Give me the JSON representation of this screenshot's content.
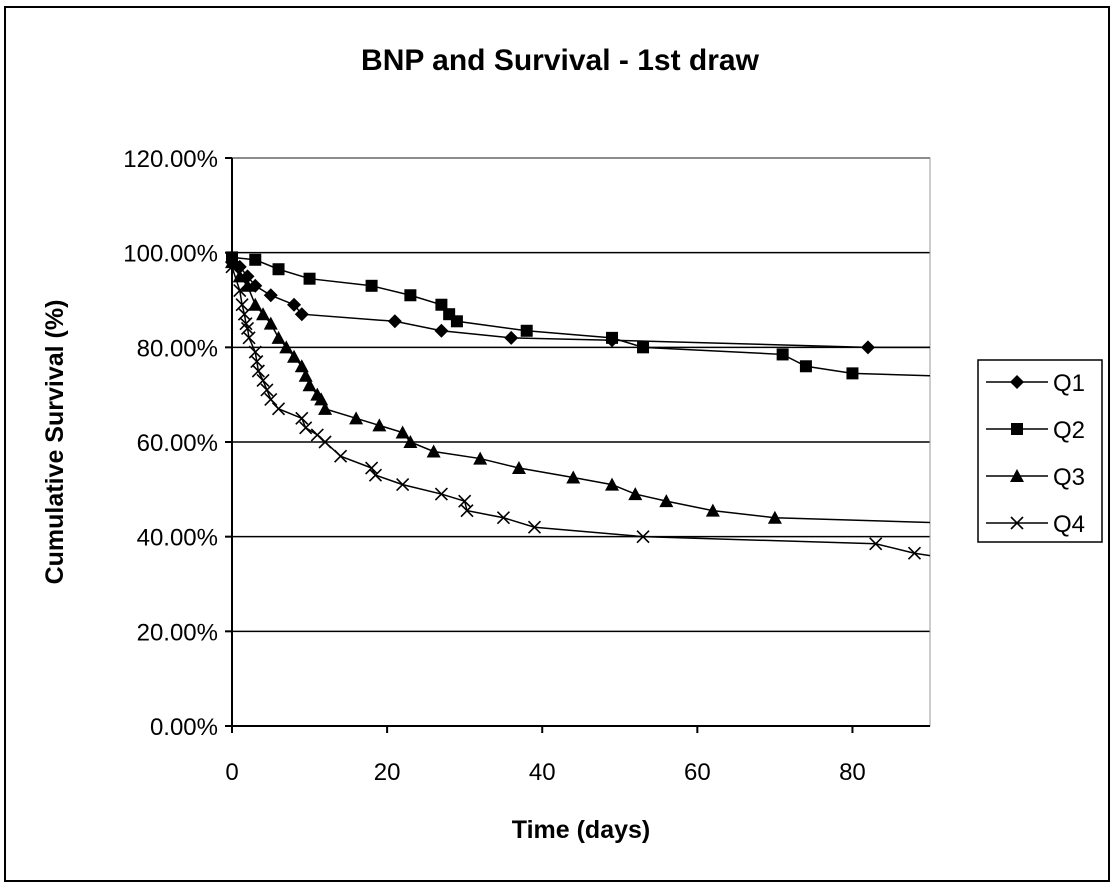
{
  "chart_data": {
    "type": "line",
    "title": "BNP and Survival - 1st draw",
    "xlabel": "Time (days)",
    "ylabel": "Cumulative Survival (%)",
    "xlim": [
      0,
      90
    ],
    "ylim": [
      0,
      1.2
    ],
    "x_ticks": [
      0,
      20,
      40,
      60,
      80
    ],
    "x_tick_labels": [
      "0",
      "20",
      "40",
      "60",
      "80"
    ],
    "y_ticks": [
      0,
      0.2,
      0.4,
      0.6,
      0.8,
      1.0,
      1.2
    ],
    "y_tick_labels": [
      "0.00%",
      "20.00%",
      "40.00%",
      "60.00%",
      "80.00%",
      "100.00%",
      "120.00%"
    ],
    "grid": "horizontal",
    "legend_position": "right",
    "series": [
      {
        "name": "Q1",
        "marker": "diamond",
        "color": "#000000",
        "line_end": [
          90,
          0.8
        ],
        "points": [
          [
            0,
            0.98
          ],
          [
            1,
            0.97
          ],
          [
            2,
            0.95
          ],
          [
            3,
            0.93
          ],
          [
            5,
            0.91
          ],
          [
            8,
            0.89
          ],
          [
            9,
            0.87
          ],
          [
            21,
            0.855
          ],
          [
            27,
            0.835
          ],
          [
            36,
            0.82
          ],
          [
            49,
            0.815
          ],
          [
            82,
            0.8
          ]
        ]
      },
      {
        "name": "Q2",
        "marker": "square",
        "color": "#000000",
        "line_end": [
          90,
          0.74
        ],
        "points": [
          [
            0,
            0.99
          ],
          [
            3,
            0.985
          ],
          [
            6,
            0.965
          ],
          [
            10,
            0.945
          ],
          [
            18,
            0.93
          ],
          [
            23,
            0.91
          ],
          [
            27,
            0.89
          ],
          [
            28,
            0.87
          ],
          [
            29,
            0.855
          ],
          [
            38,
            0.835
          ],
          [
            49,
            0.82
          ],
          [
            53,
            0.8
          ],
          [
            71,
            0.785
          ],
          [
            74,
            0.76
          ],
          [
            80,
            0.745
          ]
        ]
      },
      {
        "name": "Q3",
        "marker": "triangle",
        "color": "#000000",
        "line_end": [
          90,
          0.43
        ],
        "points": [
          [
            0,
            0.98
          ],
          [
            1,
            0.95
          ],
          [
            2,
            0.93
          ],
          [
            3,
            0.89
          ],
          [
            4,
            0.87
          ],
          [
            5,
            0.85
          ],
          [
            6,
            0.82
          ],
          [
            7,
            0.8
          ],
          [
            8,
            0.78
          ],
          [
            9,
            0.76
          ],
          [
            9.5,
            0.74
          ],
          [
            10,
            0.72
          ],
          [
            11,
            0.7
          ],
          [
            11.5,
            0.69
          ],
          [
            12,
            0.67
          ],
          [
            16,
            0.65
          ],
          [
            19,
            0.635
          ],
          [
            22,
            0.62
          ],
          [
            23,
            0.6
          ],
          [
            26,
            0.58
          ],
          [
            32,
            0.565
          ],
          [
            37,
            0.545
          ],
          [
            44,
            0.525
          ],
          [
            49,
            0.51
          ],
          [
            52,
            0.49
          ],
          [
            56,
            0.475
          ],
          [
            62,
            0.455
          ],
          [
            70,
            0.44
          ]
        ]
      },
      {
        "name": "Q4",
        "marker": "x",
        "color": "#000000",
        "line_end": [
          90,
          0.36
        ],
        "points": [
          [
            0,
            0.97
          ],
          [
            1,
            0.92
          ],
          [
            1.3,
            0.89
          ],
          [
            1.6,
            0.87
          ],
          [
            1.8,
            0.85
          ],
          [
            2,
            0.84
          ],
          [
            2.2,
            0.82
          ],
          [
            3,
            0.79
          ],
          [
            3.2,
            0.77
          ],
          [
            3.4,
            0.75
          ],
          [
            4,
            0.73
          ],
          [
            4.5,
            0.71
          ],
          [
            5,
            0.69
          ],
          [
            6,
            0.67
          ],
          [
            9,
            0.65
          ],
          [
            9.5,
            0.63
          ],
          [
            11,
            0.615
          ],
          [
            12,
            0.6
          ],
          [
            14,
            0.57
          ],
          [
            18,
            0.545
          ],
          [
            18.5,
            0.53
          ],
          [
            22,
            0.51
          ],
          [
            27,
            0.49
          ],
          [
            30,
            0.475
          ],
          [
            30.3,
            0.455
          ],
          [
            35,
            0.44
          ],
          [
            39,
            0.42
          ],
          [
            53,
            0.4
          ],
          [
            83,
            0.385
          ],
          [
            88,
            0.365
          ]
        ]
      }
    ]
  }
}
